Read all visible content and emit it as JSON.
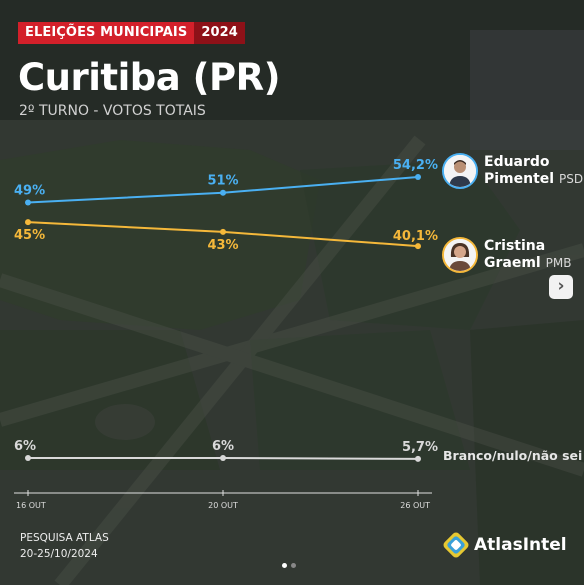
{
  "header": {
    "badge_label": "ELEIÇÕES MUNICIPAIS",
    "badge_year": "2024",
    "title": "Curitiba (PR)",
    "subtitle": "2º TURNO - VOTOS TOTAIS"
  },
  "candidates": [
    {
      "name_line1": "Eduardo",
      "name_line2": "Pimentel",
      "party": "PSD",
      "color": "#4ab0f2"
    },
    {
      "name_line1": "Cristina",
      "name_line2": "Graeml",
      "party": "PMB",
      "color": "#f5b83a"
    }
  ],
  "blank_label": "Branco/nulo/não sei",
  "chart_data": {
    "type": "line",
    "x": [
      "16 OUT",
      "20 OUT",
      "26 OUT"
    ],
    "series": [
      {
        "name": "Eduardo Pimentel PSD",
        "values": [
          49,
          51,
          54.2
        ],
        "labels": [
          "49%",
          "51%",
          "54,2%"
        ],
        "color": "#4ab0f2"
      },
      {
        "name": "Cristina Graeml PMB",
        "values": [
          45,
          43,
          40.1
        ],
        "labels": [
          "45%",
          "43%",
          "40,1%"
        ],
        "color": "#f5b83a"
      },
      {
        "name": "Branco/nulo/não sei",
        "values": [
          6,
          6,
          5.7
        ],
        "labels": [
          "6%",
          "6%",
          "5,7%"
        ],
        "color": "#d9d9d9"
      }
    ]
  },
  "source": {
    "line1": "PESQUISA ATLAS",
    "line2": "20-25/10/2024"
  },
  "logo": {
    "text": "AtlasIntel"
  },
  "next_icon": "chevron-right-icon",
  "pagination": {
    "pages": 2,
    "current": 1
  }
}
